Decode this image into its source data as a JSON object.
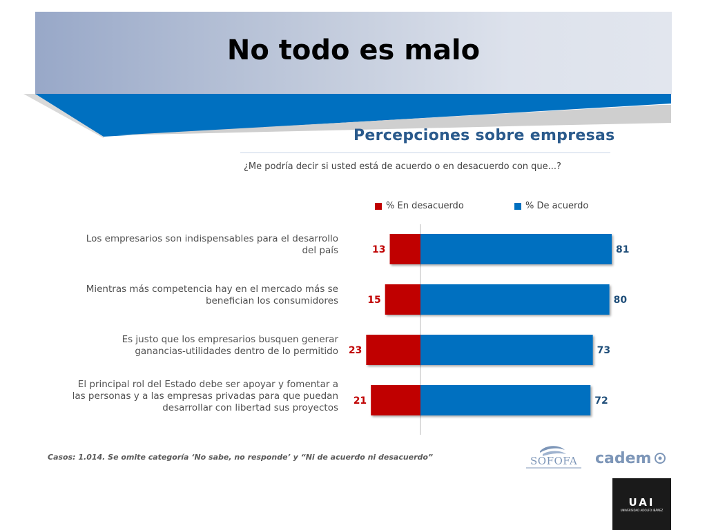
{
  "slide": {
    "title": "No todo es malo"
  },
  "chart_data": {
    "type": "bar",
    "title": "Percepciones sobre empresas",
    "subtitle": "¿Me podría decir si usted está de acuerdo o en desacuerdo  con que...?",
    "orientation": "horizontal-diverging",
    "legend_position": "top",
    "categories": [
      [
        "Los empresarios son indispensables para el desarrollo",
        "del país"
      ],
      [
        "Mientras más competencia hay en el mercado más se",
        "benefician los consumidores"
      ],
      [
        "Es justo que los empresarios busquen generar",
        "ganancias-utilidades dentro de lo permitido"
      ],
      [
        "El principal rol del Estado debe ser apoyar y fomentar a",
        "las personas y a las empresas privadas para que puedan",
        "desarrollar con libertad sus proyectos"
      ]
    ],
    "series": [
      {
        "name": "% En desacuerdo",
        "color": "#c00000",
        "values": [
          13,
          15,
          23,
          21
        ]
      },
      {
        "name": "% De acuerdo",
        "color": "#0070c0",
        "values": [
          81,
          80,
          73,
          72
        ]
      }
    ],
    "grid": false
  },
  "footnote": "Casos: 1.014. Se omite categoría ‘No sabe, no responde’ y “Ni de acuerdo ni desacuerdo”",
  "logos": {
    "sofofa": "SOFOFA",
    "cadem": "cadem",
    "ual": "UAI",
    "ual_sub": "UNIVERSIDAD ADOLFO IBÁÑEZ"
  }
}
